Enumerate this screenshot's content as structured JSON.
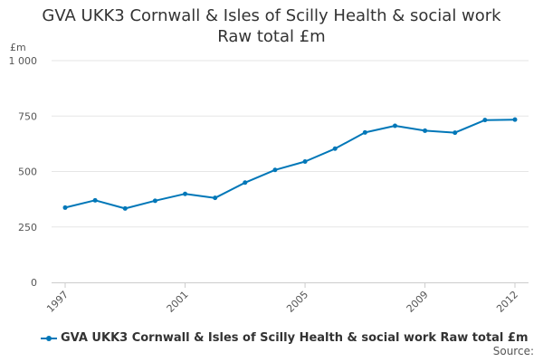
{
  "chart_data": {
    "type": "line",
    "title": "GVA UKK3 Cornwall & Isles of Scilly Health & social work",
    "subtitle": "Raw total £m",
    "ylabel": "£m",
    "xlabel": "",
    "ylim": [
      0,
      1000
    ],
    "yticks": [
      0,
      250,
      500,
      750,
      1000
    ],
    "ytick_labels": [
      "0",
      "250",
      "500",
      "750",
      "1 000"
    ],
    "xtick_labels": [
      "1997",
      "2001",
      "2005",
      "2009",
      "2012"
    ],
    "x": [
      1997,
      1998,
      1999,
      2000,
      2001,
      2002,
      2003,
      2004,
      2005,
      2006,
      2007,
      2008,
      2009,
      2010,
      2011,
      2012
    ],
    "series": [
      {
        "name": "GVA UKK3 Cornwall & Isles of Scilly Health & social work Raw total £m",
        "values": [
          337,
          370,
          333,
          368,
          399,
          381,
          450,
          507,
          545,
          603,
          676,
          706,
          684,
          675,
          732,
          734
        ],
        "color": "#0077b8"
      }
    ],
    "grid": true,
    "legend_position": "bottom-left"
  },
  "source_label": "Source:"
}
